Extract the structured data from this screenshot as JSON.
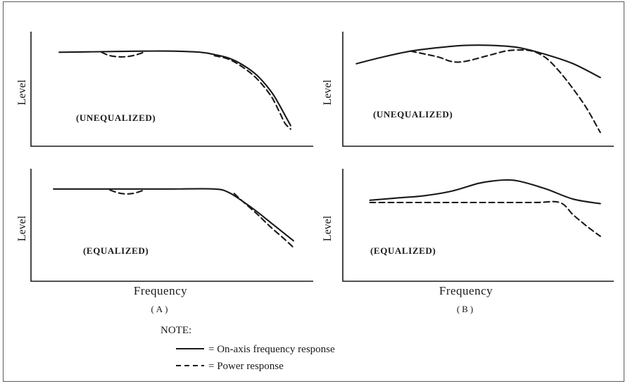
{
  "figure": {
    "panel_a_caption": "(A)",
    "panel_b_caption": "(B)",
    "xlabel_a": "Frequency",
    "xlabel_b": "Frequency",
    "note_title": "NOTE:",
    "legend": [
      {
        "style": "solid",
        "label": "= On-axis frequency response"
      },
      {
        "style": "dashed",
        "label": "= Power response"
      }
    ]
  },
  "chart_data": [
    {
      "id": "A-top",
      "type": "line",
      "panel": "A",
      "annotation": "(UNEQUALIZED)",
      "ylabel": "Level",
      "xlim": [
        0,
        100
      ],
      "ylim": [
        0,
        100
      ],
      "grid": false,
      "series": [
        {
          "style": "solid",
          "x": [
            10,
            25,
            40,
            50,
            60,
            65,
            70,
            75,
            80,
            85,
            88,
            90,
            92
          ],
          "y": [
            82,
            82.5,
            83,
            83,
            82,
            80,
            77,
            71,
            62,
            48,
            36,
            27,
            18
          ]
        },
        {
          "style": "dashed",
          "x": [
            25,
            28,
            32,
            36,
            40
          ],
          "y": [
            82,
            79,
            78,
            79,
            82
          ]
        },
        {
          "style": "dashed",
          "x": [
            65,
            70,
            75,
            80,
            85,
            88,
            90,
            92
          ],
          "y": [
            79,
            76,
            69,
            59,
            44,
            30,
            20,
            15
          ]
        }
      ]
    },
    {
      "id": "B-top",
      "type": "line",
      "panel": "B",
      "annotation": "(UNEQUALIZED)",
      "ylabel": "Level",
      "xlim": [
        0,
        100
      ],
      "ylim": [
        0,
        100
      ],
      "grid": false,
      "series": [
        {
          "style": "solid",
          "x": [
            5,
            15,
            25,
            35,
            45,
            55,
            65,
            75,
            85,
            95
          ],
          "y": [
            72,
            78,
            83,
            86,
            88,
            88,
            86,
            80,
            72,
            60
          ]
        },
        {
          "style": "dashed",
          "x": [
            25,
            35,
            40,
            45,
            55,
            60,
            65,
            70,
            75,
            80,
            85,
            90,
            95
          ],
          "y": [
            83,
            78,
            74,
            74,
            80,
            83,
            84,
            83,
            77,
            65,
            50,
            33,
            12
          ]
        }
      ]
    },
    {
      "id": "A-bottom",
      "type": "line",
      "panel": "A",
      "annotation": "(EQUALIZED)",
      "ylabel": "Level",
      "xlim": [
        0,
        100
      ],
      "ylim": [
        0,
        100
      ],
      "grid": false,
      "series": [
        {
          "style": "solid",
          "x": [
            8,
            30,
            50,
            65,
            70,
            75,
            80,
            85,
            90,
            93
          ],
          "y": [
            82,
            82,
            82,
            82,
            79,
            71,
            62,
            52,
            42,
            36
          ]
        },
        {
          "style": "dashed",
          "x": [
            28,
            32,
            36,
            40
          ],
          "y": [
            81,
            78,
            78,
            81
          ]
        },
        {
          "style": "dashed",
          "x": [
            72,
            75,
            80,
            85,
            90,
            93
          ],
          "y": [
            78,
            71,
            60,
            48,
            37,
            30
          ]
        }
      ]
    },
    {
      "id": "B-bottom",
      "type": "line",
      "panel": "B",
      "annotation": "(EQUALIZED)",
      "ylabel": "Level",
      "xlim": [
        0,
        100
      ],
      "ylim": [
        0,
        100
      ],
      "grid": false,
      "series": [
        {
          "style": "solid",
          "x": [
            10,
            20,
            30,
            40,
            50,
            55,
            60,
            65,
            75,
            85,
            95
          ],
          "y": [
            72,
            74,
            76,
            80,
            87,
            89,
            90,
            89,
            82,
            73,
            69
          ]
        },
        {
          "style": "dashed",
          "x": [
            10,
            40,
            70,
            80,
            85,
            90,
            95
          ],
          "y": [
            70,
            70,
            70,
            70,
            59,
            49,
            40
          ]
        }
      ]
    }
  ]
}
